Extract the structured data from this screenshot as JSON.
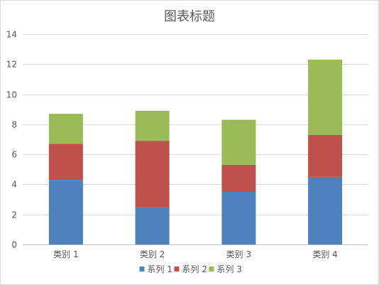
{
  "chart_data": {
    "type": "bar",
    "stacked": true,
    "title": "图表标题",
    "categories": [
      "类别 1",
      "类别 2",
      "类别 3",
      "类别 4"
    ],
    "series": [
      {
        "name": "系列 1",
        "values": [
          4.3,
          2.5,
          3.5,
          4.5
        ],
        "color": "#4f81bd"
      },
      {
        "name": "系列 2",
        "values": [
          2.4,
          4.4,
          1.8,
          2.8
        ],
        "color": "#c0504d"
      },
      {
        "name": "系列 3",
        "values": [
          2.0,
          2.0,
          3.0,
          5.0
        ],
        "color": "#9bbb59"
      }
    ],
    "ylim": [
      0,
      14
    ],
    "yticks": [
      0,
      2,
      4,
      6,
      8,
      10,
      12,
      14
    ],
    "grid": true,
    "legend_position": "bottom"
  }
}
